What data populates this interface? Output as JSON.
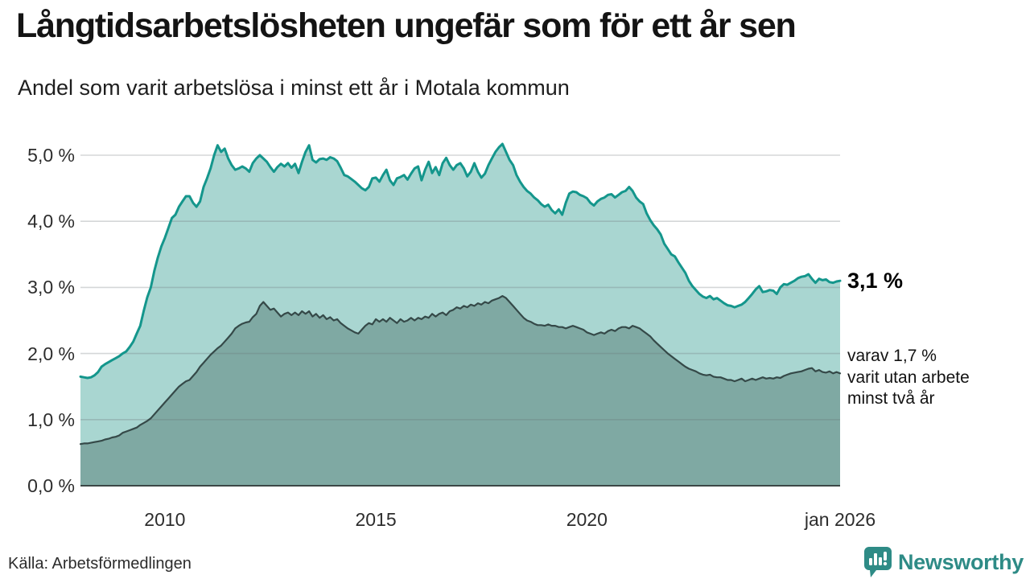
{
  "chart_data": {
    "type": "area",
    "title": "Långtidsarbetslösheten ungefär som för ett år sen",
    "subtitle": "Andel som varit arbetslösa i minst ett år i Motala kommun",
    "xlabel": "",
    "ylabel": "",
    "x_start": "2008-01",
    "x_end": "2026-01",
    "x_unit": "month",
    "ylim": [
      0,
      5
    ],
    "grid": true,
    "legend_position": "none",
    "yticks": [
      {
        "label": "0,0 %",
        "value": 0
      },
      {
        "label": "1,0 %",
        "value": 1
      },
      {
        "label": "2,0 %",
        "value": 2
      },
      {
        "label": "3,0 %",
        "value": 3
      },
      {
        "label": "4,0 %",
        "value": 4
      },
      {
        "label": "5,0 %",
        "value": 5
      }
    ],
    "xticks": [
      {
        "label": "2010",
        "month": 24
      },
      {
        "label": "2015",
        "month": 84
      },
      {
        "label": "2020",
        "month": 144
      },
      {
        "label": "jan 2026",
        "month": 216
      }
    ],
    "series": [
      {
        "name": "Arbetslösa minst ett år",
        "line_color": "#14968c",
        "fill_color": "#a9d6d1",
        "line_width": 3,
        "values": [
          1.65,
          1.64,
          1.63,
          1.64,
          1.67,
          1.72,
          1.8,
          1.84,
          1.87,
          1.9,
          1.93,
          1.96,
          2.0,
          2.03,
          2.1,
          2.18,
          2.3,
          2.42,
          2.65,
          2.85,
          3.0,
          3.25,
          3.45,
          3.62,
          3.75,
          3.9,
          4.05,
          4.1,
          4.22,
          4.3,
          4.38,
          4.38,
          4.28,
          4.22,
          4.3,
          4.52,
          4.65,
          4.8,
          5.0,
          5.15,
          5.05,
          5.1,
          4.95,
          4.85,
          4.78,
          4.8,
          4.83,
          4.8,
          4.75,
          4.88,
          4.95,
          5.0,
          4.95,
          4.9,
          4.82,
          4.75,
          4.82,
          4.87,
          4.83,
          4.88,
          4.81,
          4.87,
          4.73,
          4.9,
          5.05,
          5.15,
          4.93,
          4.89,
          4.94,
          4.95,
          4.93,
          4.97,
          4.95,
          4.91,
          4.81,
          4.7,
          4.68,
          4.64,
          4.6,
          4.55,
          4.5,
          4.47,
          4.52,
          4.65,
          4.66,
          4.6,
          4.7,
          4.78,
          4.62,
          4.55,
          4.65,
          4.67,
          4.7,
          4.63,
          4.72,
          4.8,
          4.83,
          4.62,
          4.78,
          4.9,
          4.73,
          4.82,
          4.7,
          4.88,
          4.96,
          4.85,
          4.78,
          4.85,
          4.88,
          4.8,
          4.68,
          4.75,
          4.88,
          4.75,
          4.66,
          4.72,
          4.85,
          4.95,
          5.05,
          5.12,
          5.17,
          5.05,
          4.93,
          4.85,
          4.7,
          4.6,
          4.52,
          4.46,
          4.42,
          4.36,
          4.32,
          4.26,
          4.22,
          4.25,
          4.17,
          4.12,
          4.18,
          4.1,
          4.28,
          4.42,
          4.45,
          4.44,
          4.4,
          4.38,
          4.35,
          4.28,
          4.24,
          4.3,
          4.34,
          4.36,
          4.4,
          4.41,
          4.36,
          4.4,
          4.44,
          4.46,
          4.52,
          4.46,
          4.36,
          4.3,
          4.26,
          4.12,
          4.02,
          3.94,
          3.88,
          3.8,
          3.66,
          3.58,
          3.5,
          3.47,
          3.38,
          3.3,
          3.22,
          3.1,
          3.02,
          2.96,
          2.9,
          2.86,
          2.84,
          2.87,
          2.82,
          2.84,
          2.8,
          2.76,
          2.73,
          2.72,
          2.7,
          2.72,
          2.74,
          2.78,
          2.84,
          2.9,
          2.97,
          3.02,
          2.93,
          2.94,
          2.96,
          2.95,
          2.9,
          3.0,
          3.05,
          3.04,
          3.07,
          3.1,
          3.14,
          3.16,
          3.17,
          3.2,
          3.13,
          3.07,
          3.13,
          3.11,
          3.12,
          3.08,
          3.07,
          3.09,
          3.1
        ]
      },
      {
        "name": "Varav arbetslösa minst två år",
        "line_color": "#354948",
        "fill_color": "#7fa9a3",
        "line_width": 2.2,
        "values": [
          0.63,
          0.64,
          0.64,
          0.65,
          0.66,
          0.67,
          0.68,
          0.7,
          0.71,
          0.73,
          0.74,
          0.76,
          0.8,
          0.82,
          0.84,
          0.86,
          0.88,
          0.92,
          0.95,
          0.98,
          1.02,
          1.08,
          1.14,
          1.2,
          1.26,
          1.32,
          1.38,
          1.44,
          1.5,
          1.54,
          1.58,
          1.6,
          1.66,
          1.72,
          1.8,
          1.86,
          1.92,
          1.98,
          2.03,
          2.08,
          2.12,
          2.18,
          2.24,
          2.3,
          2.38,
          2.42,
          2.45,
          2.47,
          2.48,
          2.55,
          2.6,
          2.72,
          2.78,
          2.72,
          2.66,
          2.68,
          2.62,
          2.56,
          2.6,
          2.62,
          2.58,
          2.62,
          2.58,
          2.64,
          2.6,
          2.64,
          2.56,
          2.6,
          2.54,
          2.58,
          2.52,
          2.55,
          2.5,
          2.52,
          2.46,
          2.42,
          2.38,
          2.35,
          2.32,
          2.3,
          2.36,
          2.42,
          2.46,
          2.44,
          2.52,
          2.48,
          2.52,
          2.48,
          2.54,
          2.5,
          2.46,
          2.52,
          2.48,
          2.5,
          2.54,
          2.5,
          2.54,
          2.52,
          2.56,
          2.54,
          2.6,
          2.56,
          2.6,
          2.62,
          2.58,
          2.64,
          2.66,
          2.7,
          2.68,
          2.72,
          2.7,
          2.74,
          2.72,
          2.76,
          2.74,
          2.78,
          2.76,
          2.8,
          2.82,
          2.84,
          2.87,
          2.84,
          2.78,
          2.72,
          2.66,
          2.6,
          2.54,
          2.5,
          2.48,
          2.45,
          2.43,
          2.43,
          2.42,
          2.44,
          2.42,
          2.42,
          2.4,
          2.4,
          2.38,
          2.4,
          2.42,
          2.4,
          2.38,
          2.36,
          2.32,
          2.3,
          2.28,
          2.3,
          2.32,
          2.3,
          2.34,
          2.36,
          2.34,
          2.38,
          2.4,
          2.4,
          2.38,
          2.42,
          2.4,
          2.38,
          2.34,
          2.3,
          2.26,
          2.2,
          2.15,
          2.1,
          2.05,
          2.0,
          1.96,
          1.92,
          1.88,
          1.84,
          1.8,
          1.77,
          1.75,
          1.73,
          1.7,
          1.68,
          1.67,
          1.68,
          1.65,
          1.64,
          1.64,
          1.62,
          1.6,
          1.6,
          1.58,
          1.6,
          1.62,
          1.58,
          1.6,
          1.62,
          1.6,
          1.62,
          1.64,
          1.62,
          1.63,
          1.62,
          1.64,
          1.63,
          1.66,
          1.68,
          1.7,
          1.71,
          1.72,
          1.73,
          1.75,
          1.77,
          1.78,
          1.73,
          1.75,
          1.72,
          1.71,
          1.73,
          1.7,
          1.72,
          1.7
        ]
      }
    ],
    "end_labels": {
      "total": "3,1 %",
      "note_lines": [
        "varav 1,7 %",
        "varit utan arbete",
        "minst två år"
      ]
    }
  },
  "source": "Källa: Arbetsförmedlingen",
  "logo": {
    "text": "Newsworthy",
    "color": "#2e8b86"
  },
  "colors": {
    "grid": "#d8dadb",
    "axis": "#3c4746",
    "background": "#ffffff"
  }
}
